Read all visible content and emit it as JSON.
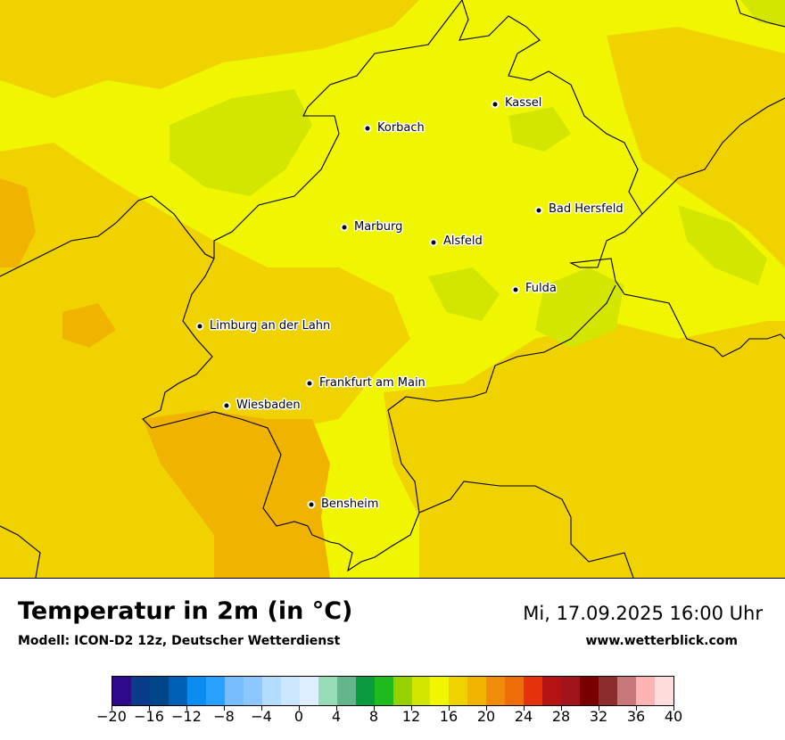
{
  "map": {
    "cities": [
      {
        "name": "Kassel"
      },
      {
        "name": "Korbach"
      },
      {
        "name": "Bad Hersfeld"
      },
      {
        "name": "Marburg"
      },
      {
        "name": "Alsfeld"
      },
      {
        "name": "Fulda"
      },
      {
        "name": "Limburg an der Lahn"
      },
      {
        "name": "Frankfurt am Main"
      },
      {
        "name": "Wiesbaden"
      },
      {
        "name": "Bensheim"
      }
    ]
  },
  "footer": {
    "title": "Temperatur in 2m (in °C)",
    "model": "Modell: ICON-D2 12z, Deutscher Wetterdienst",
    "datetime": "Mi, 17.09.2025 16:00 Uhr",
    "website": "www.wetterblick.com"
  },
  "legend": {
    "min": -20,
    "max": 40,
    "tick_labels": [
      "−20",
      "−16",
      "−12",
      "−8",
      "−4",
      "0",
      "4",
      "8",
      "12",
      "16",
      "20",
      "24",
      "28",
      "32",
      "36",
      "40"
    ],
    "colors": [
      "#2e0a8a",
      "#0a3a8a",
      "#00468a",
      "#0060b4",
      "#0a8cf0",
      "#28a0ff",
      "#78beff",
      "#8cc8ff",
      "#b4dcff",
      "#cde6ff",
      "#dceeff",
      "#96dcb4",
      "#64b48c",
      "#0a9c3c",
      "#1eba1e",
      "#96d200",
      "#d2e600",
      "#f0f500",
      "#f0d200",
      "#f0b400",
      "#f08c0a",
      "#f06e0a",
      "#e6320a",
      "#b41414",
      "#a0141e",
      "#780000",
      "#8c2d2d",
      "#c87878",
      "#ffb4b4",
      "#ffdcdc"
    ]
  }
}
